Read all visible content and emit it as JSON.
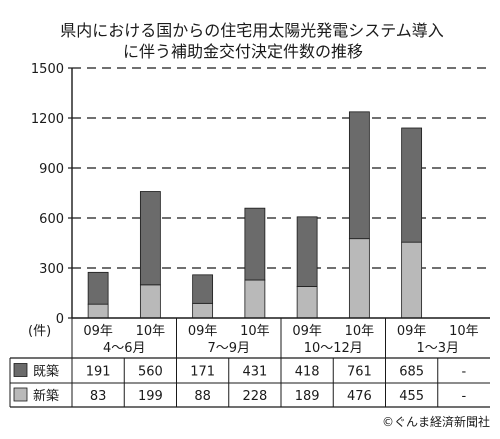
{
  "title_lines": [
    "県内における国からの住宅用太陽光発電システム導入",
    "に伴う補助金交付決定件数の推移"
  ],
  "unit_label": "(件)",
  "source": "©ぐんま経済新聞社",
  "colors": {
    "existing": "#6b6b6b",
    "new": "#b9b9b9",
    "axis": "#1a1a1a",
    "grid": "#1a1a1a"
  },
  "chart_data": {
    "type": "bar",
    "stacked": true,
    "title": "県内における国からの住宅用太陽光発電システム導入に伴う補助金交付決定件数の推移",
    "ylabel": "(件)",
    "ylim": [
      0,
      1500
    ],
    "yticks": [
      0,
      300,
      600,
      900,
      1200,
      1500
    ],
    "grid": true,
    "categories": [
      "09年",
      "10年",
      "09年",
      "10年",
      "09年",
      "10年",
      "09年",
      "10年"
    ],
    "groups": [
      "4〜6月",
      "7〜9月",
      "10〜12月",
      "1〜3月"
    ],
    "series": [
      {
        "name": "新築",
        "values": [
          83,
          199,
          88,
          228,
          189,
          476,
          455,
          null
        ],
        "labels": [
          "83",
          "199",
          "88",
          "228",
          "189",
          "476",
          "455",
          "-"
        ]
      },
      {
        "name": "既築",
        "values": [
          191,
          560,
          171,
          431,
          418,
          761,
          685,
          null
        ],
        "labels": [
          "191",
          "560",
          "171",
          "431",
          "418",
          "761",
          "685",
          "-"
        ]
      }
    ]
  }
}
